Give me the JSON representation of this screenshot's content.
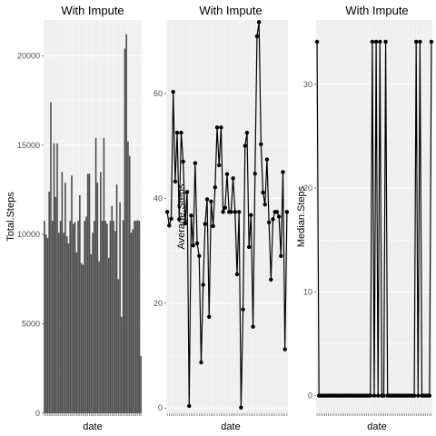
{
  "colors": {
    "panel_bg": "#ebebeb",
    "grid": "#ffffff",
    "mark": "#4d4d4d",
    "line": "#000000",
    "axis_text": "#4d4d4d",
    "title_text": "#000000"
  },
  "chart_data": [
    {
      "type": "bar",
      "title": "With Impute",
      "xlabel": "date",
      "ylabel": "Total.Steps",
      "ylim": [
        0,
        22000
      ],
      "yticks": [
        0,
        5000,
        10000,
        15000,
        20000
      ],
      "grid": true,
      "values": [
        10766,
        10000,
        9800,
        12400,
        17400,
        10766,
        15100,
        12100,
        15100,
        10100,
        10766,
        13500,
        10100,
        12900,
        9900,
        9500,
        10766,
        13300,
        10600,
        10700,
        9000,
        10766,
        12200,
        8400,
        8300,
        10766,
        11000,
        13400,
        13400,
        8900,
        10100,
        10766,
        15400,
        12900,
        8500,
        13500,
        10766,
        15400,
        10766,
        10600,
        8700,
        10766,
        11600,
        10766,
        10200,
        12800,
        7500,
        11800,
        5400,
        10800,
        20400,
        21200,
        15200,
        14400,
        10100,
        10300,
        10766,
        10766,
        10800,
        10766,
        3200
      ],
      "show_x_tick_labels": false
    },
    {
      "type": "line",
      "title": "With Impute",
      "xlabel": "date",
      "ylabel": "Average.Steps",
      "ylim": [
        -1,
        74
      ],
      "yticks": [
        0,
        20,
        40,
        60
      ],
      "grid": true,
      "values": [
        37.4,
        34.8,
        36.1,
        60.3,
        43.2,
        52.5,
        36.0,
        52.5,
        47.0,
        35.2,
        41.2,
        0.4,
        36.7,
        31.0,
        46.7,
        31.4,
        29.0,
        8.7,
        23.5,
        35.1,
        39.8,
        17.4,
        39.4,
        34.7,
        42.1,
        53.5,
        46.3,
        53.5,
        37.4,
        38.2,
        44.6,
        37.4,
        37.4,
        43.8,
        37.4,
        25.5,
        37.4,
        0.1,
        18.8,
        50.0,
        52.5,
        30.7,
        36.8,
        15.5,
        44.7,
        70.9,
        73.6,
        50.3,
        41.1,
        38.8,
        47.4,
        35.4,
        24.5,
        36.0,
        37.4,
        37.4,
        36.5,
        29.0,
        45.0,
        11.2,
        37.4
      ],
      "show_x_tick_labels": false
    },
    {
      "type": "line",
      "title": "With Impute",
      "xlabel": "date",
      "ylabel": "Median.Steps",
      "ylim": [
        -1.7,
        36.2
      ],
      "yticks": [
        0,
        10,
        20,
        30
      ],
      "grid": true,
      "values": [
        34.1,
        0,
        0,
        0,
        0,
        0,
        0,
        0,
        0,
        0,
        0,
        0,
        0,
        0,
        0,
        0,
        0,
        0,
        0,
        0,
        0,
        0,
        0,
        0,
        0,
        0,
        0,
        0,
        0,
        34.1,
        0,
        34.1,
        0,
        34.1,
        0,
        0,
        34.1,
        0,
        0,
        0,
        0,
        0,
        0,
        0,
        0,
        0,
        0,
        0,
        0,
        0,
        0,
        0,
        34.1,
        0,
        34.1,
        0,
        0,
        0,
        0,
        0,
        34.1
      ],
      "show_x_tick_labels": false
    }
  ]
}
